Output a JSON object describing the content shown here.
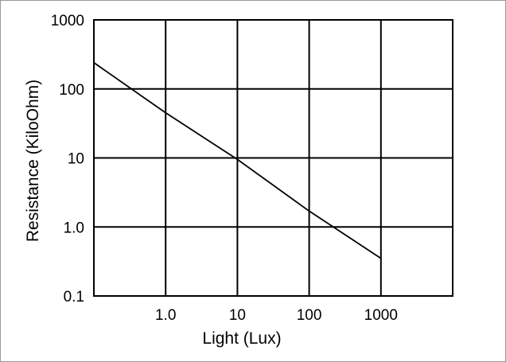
{
  "chart_data": {
    "type": "line",
    "title": "",
    "xlabel": "Light (Lux)",
    "ylabel": "Resistance (KiloOhm)",
    "x_scale": "log",
    "y_scale": "log",
    "xlim": [
      0.1,
      10000
    ],
    "ylim": [
      0.1,
      1000
    ],
    "x_ticks": [
      {
        "value": 1,
        "label": "1.0"
      },
      {
        "value": 10,
        "label": "10"
      },
      {
        "value": 100,
        "label": "100"
      },
      {
        "value": 1000,
        "label": "1000"
      }
    ],
    "y_ticks": [
      {
        "value": 0.1,
        "label": "0.1"
      },
      {
        "value": 1,
        "label": "1.0"
      },
      {
        "value": 10,
        "label": "10"
      },
      {
        "value": 100,
        "label": "100"
      },
      {
        "value": 1000,
        "label": "1000"
      }
    ],
    "grid": true,
    "legend": "none",
    "series": [
      {
        "x": [
          0.1,
          1,
          10,
          100,
          1000
        ],
        "y": [
          240,
          45,
          9.5,
          1.7,
          0.35
        ]
      }
    ],
    "colors": {
      "line": "#000000",
      "grid": "#000000",
      "frame": "#9a9a9a"
    }
  }
}
